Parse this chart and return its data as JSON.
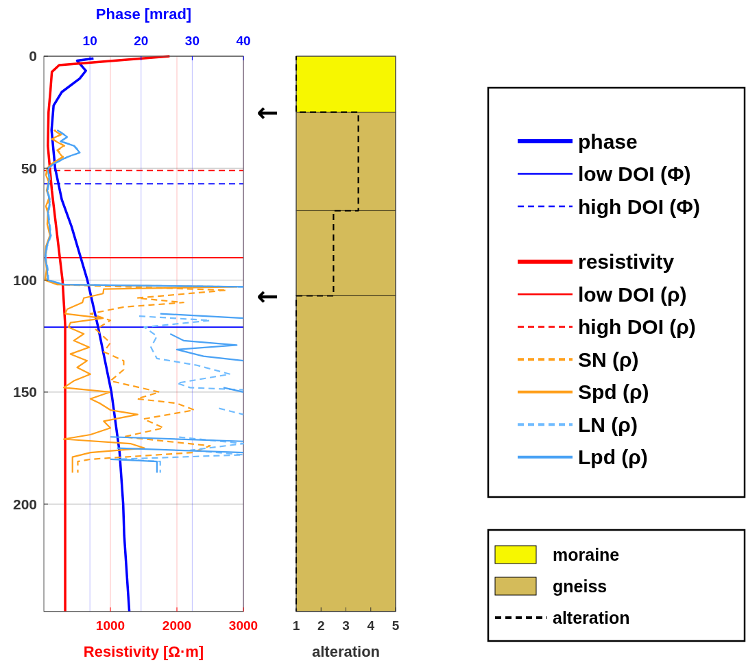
{
  "chart_data": [
    {
      "type": "line",
      "orientation": "horizontal",
      "xlabel": "Resistivity [Ω·m]",
      "x2label": "Phase [mrad]",
      "xlim": [
        0,
        3000
      ],
      "xticks": [
        1000,
        2000,
        3000
      ],
      "x2lim": [
        1,
        40
      ],
      "x2ticks": [
        10,
        20,
        30,
        40
      ],
      "ylim": [
        248,
        0
      ],
      "yticks": [
        0,
        50,
        100,
        150,
        200
      ],
      "grid": true,
      "legend": "right",
      "series": [
        {
          "name": "phase",
          "color": "#0000ff",
          "axis": "x2",
          "x": [
            1,
            2,
            6.5,
            10,
            16,
            22,
            33,
            50,
            64,
            76,
            100,
            121,
            150,
            177,
            200,
            214,
            248
          ],
          "values": [
            10.7,
            7.5,
            9.2,
            8.0,
            4.5,
            2.9,
            2.5,
            3.2,
            4.5,
            6.4,
            9.5,
            11.6,
            14.2,
            15.8,
            16.5,
            16.7,
            17.7
          ]
        },
        {
          "name": "resistivity",
          "color": "#ff0000",
          "x": [
            0,
            4,
            7,
            15,
            25,
            40,
            50,
            60,
            70,
            80,
            90,
            100,
            110,
            120,
            140,
            248
          ],
          "values": [
            1890,
            230,
            120,
            100,
            70,
            60,
            90,
            120,
            160,
            200,
            240,
            280,
            300,
            320,
            320,
            320
          ]
        },
        {
          "name": "SN (ρ)",
          "color": "#ff9f1a",
          "line_style": "dashed",
          "x": [
            33,
            35,
            37,
            40,
            42,
            45,
            48,
            50,
            53,
            56,
            60,
            63,
            67,
            70,
            75,
            80,
            85,
            90,
            95,
            100,
            102,
            104.5,
            108,
            110,
            112,
            115,
            118,
            122,
            128,
            132,
            136,
            140,
            145,
            150,
            153,
            155,
            158,
            162,
            166,
            170,
            174,
            177,
            180,
            181,
            186
          ],
          "values": [
            160,
            260,
            130,
            310,
            210,
            290,
            130,
            60,
            40,
            80,
            50,
            90,
            40,
            70,
            60,
            100,
            40,
            30,
            50,
            30,
            250,
            2750,
            1400,
            2100,
            1200,
            700,
            1000,
            780,
            1000,
            900,
            1200,
            1200,
            1000,
            1740,
            1400,
            2000,
            2260,
            1500,
            1800,
            1200,
            2500,
            2230,
            700,
            510,
            510
          ]
        },
        {
          "name": "Spd (ρ)",
          "color": "#ff9f1a",
          "x": [
            33,
            35,
            37,
            40,
            42,
            45,
            48,
            50,
            53,
            56,
            60,
            63,
            67,
            70,
            75,
            80,
            85,
            90,
            95,
            100,
            102,
            103,
            104,
            106,
            108,
            110,
            113,
            115,
            117,
            119,
            121,
            124,
            127,
            130,
            133,
            136,
            139,
            142,
            145,
            148,
            150,
            153,
            155,
            158,
            160,
            163,
            166,
            169,
            171,
            173,
            175,
            177,
            179,
            186
          ],
          "values": [
            150,
            250,
            120,
            300,
            200,
            280,
            120,
            50,
            30,
            70,
            40,
            80,
            30,
            60,
            50,
            90,
            30,
            20,
            40,
            20,
            200,
            2900,
            900,
            890,
            600,
            580,
            350,
            320,
            890,
            400,
            370,
            600,
            450,
            680,
            400,
            650,
            500,
            700,
            450,
            300,
            990,
            700,
            840,
            1000,
            1410,
            900,
            1000,
            700,
            300,
            1300,
            1510,
            700,
            430,
            430
          ]
        },
        {
          "name": "LN (ρ)",
          "color": "#70bcff",
          "line_style": "dashed",
          "x": [
            33,
            36,
            38,
            40,
            43,
            45,
            48,
            50,
            55,
            60,
            65,
            70,
            75,
            80,
            85,
            90,
            95,
            100,
            102,
            103,
            104,
            114,
            116,
            118,
            121,
            125,
            130,
            135,
            138,
            142,
            146,
            148,
            149,
            151,
            157,
            160,
            162,
            170,
            173,
            176,
            178,
            180,
            181,
            186
          ],
          "values": [
            210,
            360,
            260,
            460,
            550,
            360,
            160,
            70,
            90,
            60,
            100,
            70,
            90,
            110,
            50,
            30,
            60,
            70,
            320,
            3000,
            null,
            null,
            1400,
            2500,
            1510,
            1700,
            1610,
            1700,
            2300,
            2800,
            2000,
            2200,
            3000,
            null,
            2600,
            3000,
            null,
            2000,
            3000,
            2200,
            3000,
            1100,
            1750,
            1750
          ]
        },
        {
          "name": "Lpd (ρ)",
          "color": "#4aa2f5",
          "x": [
            33,
            36,
            38,
            40,
            43,
            45,
            48,
            50,
            55,
            60,
            65,
            70,
            75,
            80,
            85,
            90,
            95,
            100,
            102,
            103,
            104,
            114,
            115,
            117,
            119,
            122,
            124,
            127,
            129,
            131,
            134,
            136,
            138,
            146,
            148,
            150,
            152,
            168,
            170,
            172,
            173,
            175,
            177,
            178,
            180,
            181,
            186
          ],
          "values": [
            200,
            350,
            250,
            450,
            540,
            350,
            150,
            60,
            80,
            50,
            90,
            60,
            80,
            100,
            40,
            20,
            50,
            60,
            300,
            3000,
            null,
            null,
            1750,
            3000,
            null,
            null,
            1900,
            2100,
            2900,
            2000,
            2400,
            3000,
            null,
            null,
            2700,
            3000,
            null,
            null,
            1000,
            3000,
            null,
            1100,
            3000,
            null,
            1000,
            1700,
            1700
          ]
        }
      ],
      "ref_lines": [
        {
          "axis": "y",
          "value": 121,
          "label": "low DOI (Φ)",
          "color": "#0000ff",
          "line_style": "solid"
        },
        {
          "axis": "y",
          "value": 57,
          "label": "high DOI (Φ)",
          "color": "#0000ff",
          "line_style": "dashed"
        },
        {
          "axis": "y",
          "value": 90,
          "label": "low DOI (ρ)",
          "color": "#ff0000",
          "line_style": "solid"
        },
        {
          "axis": "y",
          "value": 51,
          "label": "high DOI (ρ)",
          "color": "#ff0000",
          "line_style": "dashed"
        }
      ]
    },
    {
      "type": "line",
      "orientation": "horizontal",
      "xlabel": "alteration",
      "xlim": [
        1,
        5
      ],
      "xticks": [
        1,
        2,
        3,
        4,
        5
      ],
      "ylim": [
        248,
        0
      ],
      "tick_labels": "x",
      "legend": "bottom right",
      "bands": [
        {
          "axis": "y",
          "from": 0,
          "to": 25,
          "label": "moraine",
          "color": "#f7f700"
        },
        {
          "axis": "y",
          "from": 25,
          "to": 69,
          "label": "gneiss",
          "color": "#d4bb5a"
        },
        {
          "axis": "y",
          "from": 69,
          "to": 107,
          "color": "#d4bb5a"
        },
        {
          "axis": "y",
          "from": 107,
          "to": 248,
          "color": "#d4bb5a"
        }
      ],
      "series": [
        {
          "name": "alteration",
          "color": "#000000",
          "line_style": "dashed",
          "x": [
            0,
            25,
            25,
            69,
            69,
            107,
            107,
            248
          ],
          "values": [
            1,
            1,
            3.5,
            3.5,
            2.5,
            2.5,
            1,
            1
          ]
        }
      ],
      "annotations": [
        {
          "text": "←",
          "x": 1,
          "y": 25
        },
        {
          "text": "←",
          "x": 1,
          "y": 107
        }
      ]
    }
  ]
}
